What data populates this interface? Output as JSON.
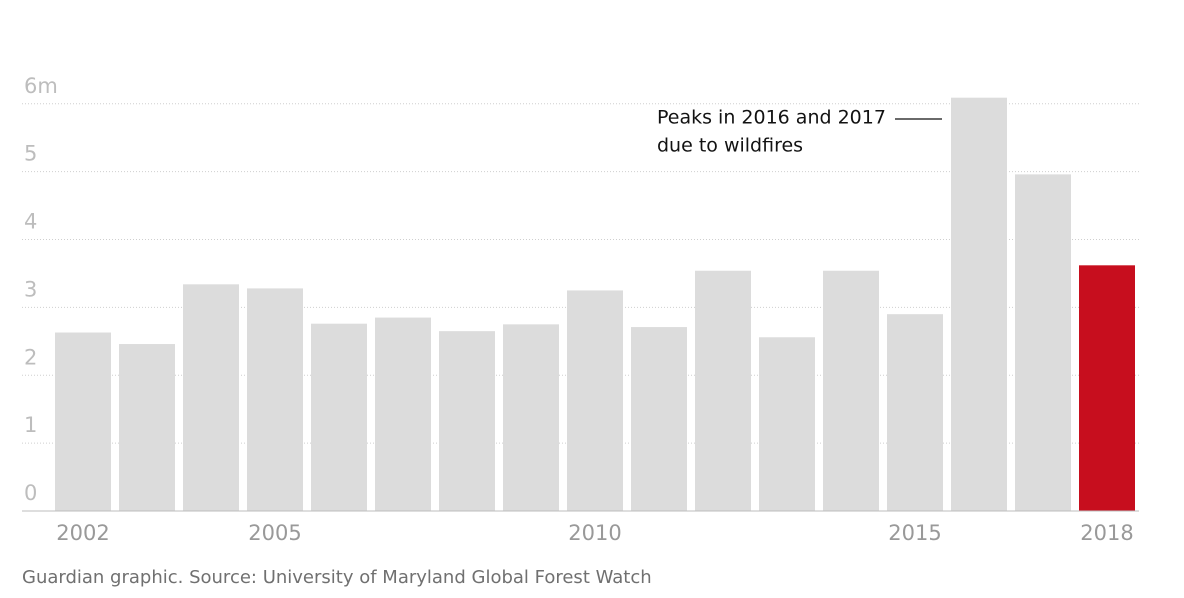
{
  "chart_data": {
    "type": "bar",
    "categories": [
      "2002",
      null,
      null,
      "2005",
      null,
      null,
      null,
      null,
      "2010",
      null,
      null,
      null,
      null,
      "2015",
      null,
      null,
      "2018"
    ],
    "values": [
      2.63,
      2.46,
      3.34,
      3.28,
      2.76,
      2.85,
      2.65,
      2.75,
      3.25,
      2.71,
      3.54,
      2.56,
      3.54,
      2.9,
      6.09,
      4.96,
      3.62
    ],
    "colors": [
      "#dcdcdc",
      "#dcdcdc",
      "#dcdcdc",
      "#dcdcdc",
      "#dcdcdc",
      "#dcdcdc",
      "#dcdcdc",
      "#dcdcdc",
      "#dcdcdc",
      "#dcdcdc",
      "#dcdcdc",
      "#dcdcdc",
      "#dcdcdc",
      "#dcdcdc",
      "#dcdcdc",
      "#dcdcdc",
      "#c70e1e"
    ],
    "ylim": [
      0,
      6.1
    ],
    "yticks": [
      0,
      1,
      2,
      3,
      4,
      5,
      {
        "value": 6,
        "label": "6m"
      }
    ],
    "grid": true,
    "annotation": [
      "Peaks in 2016 and 2017",
      "due to wildfires"
    ],
    "source": "Guardian graphic. Source: University of Maryland Global Forest Watch"
  }
}
